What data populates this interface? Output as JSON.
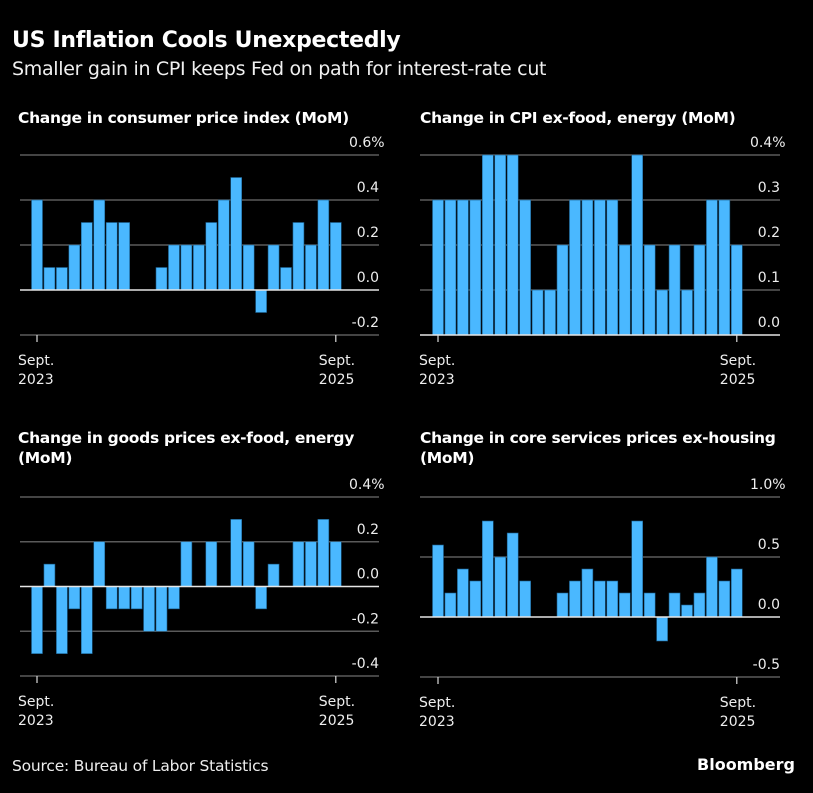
{
  "header": {
    "title": "US Inflation Cools Unexpectedly",
    "subtitle": "Smaller gain in CPI keeps Fed on path for interest-rate cut"
  },
  "footer": {
    "source": "Source: Bureau of Labor Statistics",
    "brand": "Bloomberg"
  },
  "colors": {
    "background": "#000000",
    "bar": "#4ab8ff",
    "gridline": "#5a5a5a",
    "zero_line": "#e6e6e6"
  },
  "chart_data": [
    {
      "type": "bar",
      "title": "Change in consumer price index (MoM)",
      "x_start": "Sept. 2023",
      "x_end": "Sept. 2025",
      "x_tick_labels": [
        [
          "Sept.",
          "2023"
        ],
        [
          "Sept.",
          "2025"
        ]
      ],
      "y_ticks": [
        {
          "value": 0.6,
          "label": "0.6%"
        },
        {
          "value": 0.4,
          "label": "0.4"
        },
        {
          "value": 0.2,
          "label": "0.2"
        },
        {
          "value": 0.0,
          "label": "0.0"
        },
        {
          "value": -0.2,
          "label": "-0.2"
        }
      ],
      "ylim": [
        -0.2,
        0.6
      ],
      "unit": "%",
      "values": [
        0.4,
        0.1,
        0.1,
        0.2,
        0.3,
        0.4,
        0.3,
        0.3,
        0.0,
        0.0,
        0.1,
        0.2,
        0.2,
        0.2,
        0.3,
        0.4,
        0.5,
        0.2,
        -0.1,
        0.2,
        0.1,
        0.3,
        0.2,
        0.4,
        0.3
      ]
    },
    {
      "type": "bar",
      "title": "Change in CPI ex-food, energy (MoM)",
      "x_start": "Sept. 2023",
      "x_end": "Sept. 2025",
      "x_tick_labels": [
        [
          "Sept.",
          "2023"
        ],
        [
          "Sept.",
          "2025"
        ]
      ],
      "y_ticks": [
        {
          "value": 0.4,
          "label": "0.4%"
        },
        {
          "value": 0.3,
          "label": "0.3"
        },
        {
          "value": 0.2,
          "label": "0.2"
        },
        {
          "value": 0.1,
          "label": "0.1"
        },
        {
          "value": 0.0,
          "label": "0.0"
        }
      ],
      "ylim": [
        0.0,
        0.4
      ],
      "unit": "%",
      "values": [
        0.3,
        0.3,
        0.3,
        0.3,
        0.4,
        0.4,
        0.4,
        0.3,
        0.1,
        0.1,
        0.2,
        0.3,
        0.3,
        0.3,
        0.3,
        0.2,
        0.4,
        0.2,
        0.1,
        0.2,
        0.1,
        0.2,
        0.3,
        0.3,
        0.2
      ]
    },
    {
      "type": "bar",
      "title": "Change in goods prices ex-food, energy (MoM)",
      "x_start": "Sept. 2023",
      "x_end": "Sept. 2025",
      "x_tick_labels": [
        [
          "Sept.",
          "2023"
        ],
        [
          "Sept.",
          "2025"
        ]
      ],
      "y_ticks": [
        {
          "value": 0.4,
          "label": "0.4%"
        },
        {
          "value": 0.2,
          "label": "0.2"
        },
        {
          "value": 0.0,
          "label": "0.0"
        },
        {
          "value": -0.2,
          "label": "-0.2"
        },
        {
          "value": -0.4,
          "label": "-0.4"
        }
      ],
      "ylim": [
        -0.4,
        0.4
      ],
      "unit": "%",
      "values": [
        -0.3,
        0.1,
        -0.3,
        -0.1,
        -0.3,
        0.2,
        -0.1,
        -0.1,
        -0.1,
        -0.2,
        -0.2,
        -0.1,
        0.2,
        0.0,
        0.2,
        0.0,
        0.3,
        0.2,
        -0.1,
        0.1,
        0.0,
        0.2,
        0.2,
        0.3,
        0.2
      ]
    },
    {
      "type": "bar",
      "title": "Change in core services prices ex-housing (MoM)",
      "x_start": "Sept. 2023",
      "x_end": "Sept. 2025",
      "x_tick_labels": [
        [
          "Sept.",
          "2023"
        ],
        [
          "Sept.",
          "2025"
        ]
      ],
      "y_ticks": [
        {
          "value": 1.0,
          "label": "1.0%"
        },
        {
          "value": 0.5,
          "label": "0.5"
        },
        {
          "value": 0.0,
          "label": "0.0"
        },
        {
          "value": -0.5,
          "label": "-0.5"
        }
      ],
      "ylim": [
        -0.5,
        1.0
      ],
      "unit": "%",
      "values": [
        0.6,
        0.2,
        0.4,
        0.3,
        0.8,
        0.5,
        0.7,
        0.3,
        0.0,
        0.0,
        0.2,
        0.3,
        0.4,
        0.3,
        0.3,
        0.2,
        0.8,
        0.2,
        -0.2,
        0.2,
        0.1,
        0.2,
        0.5,
        0.3,
        0.4
      ]
    }
  ]
}
